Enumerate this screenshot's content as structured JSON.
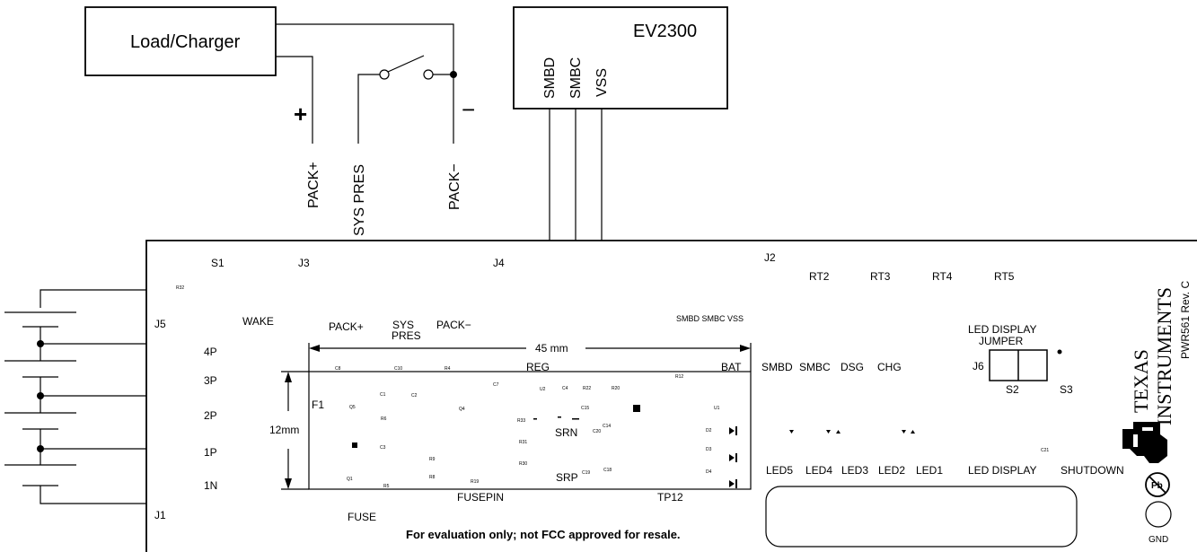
{
  "top": {
    "load_charger": "Load/Charger",
    "plus_sign": "+",
    "minus_sign": "−",
    "pack_plus": "PACK+",
    "sys_pres": "SYS PRES",
    "pack_minus": "PACK−",
    "ev2300": "EV2300",
    "smbd": "SMBD",
    "smbc": "SMBC",
    "vss": "VSS"
  },
  "board": {
    "s1": "S1",
    "j3": "J3",
    "j4": "J4",
    "j2": "J2",
    "j5": "J5",
    "j1": "J1",
    "j6": "J6",
    "r32": "R32",
    "wake": "WAKE",
    "pack_plus": "PACK+",
    "sys": "SYS",
    "pres": "PRES",
    "pack_minus": "PACK−",
    "smbd_smbc_vss": "SMBD SMBC  VSS",
    "dim_45": "45 mm",
    "dim_12": "12mm",
    "reg": "REG",
    "bat": "BAT",
    "fusepin": "FUSEPIN",
    "tp12": "TP12",
    "fuse": "FUSE",
    "f1": "F1",
    "srn": "SRN",
    "srp": "SRP",
    "cell_taps": [
      "4P",
      "3P",
      "2P",
      "1P",
      "1N"
    ],
    "rt": [
      "RT2",
      "RT3",
      "RT4",
      "RT5"
    ],
    "signals": [
      "SMBD",
      "SMBC",
      "DSG",
      "CHG"
    ],
    "leds": [
      "LED5",
      "LED4",
      "LED3",
      "LED2",
      "LED1"
    ],
    "led_display": "LED DISPLAY",
    "led_display_jumper_1": "LED DISPLAY",
    "led_display_jumper_2": "JUMPER",
    "shutdown": "SHUTDOWN",
    "s2": "S2",
    "s3": "S3",
    "c21": "C21",
    "gnd": "GND",
    "disclaimer": "For evaluation only; not FCC approved for resale.",
    "ti_1": "TEXAS",
    "ti_2": "INSTRUMENTS",
    "pwr": "PWR561 Rev. C",
    "pb_mark": "Pb",
    "components": {
      "c8": "C8",
      "c10": "C10",
      "r4": "R4",
      "c7": "C7",
      "u2": "U2",
      "c4": "C4",
      "r22": "R22",
      "r20": "R20",
      "r12": "R12",
      "c1": "C1",
      "c2": "C2",
      "q5": "Q5",
      "q4": "Q4",
      "r6": "R6",
      "c15": "C15",
      "u1": "U1",
      "r33": "R33",
      "c14": "C14",
      "c20": "C20",
      "d2": "D2",
      "c3": "C3",
      "r31": "R31",
      "d3": "D3",
      "r9": "R9",
      "r30": "R30",
      "c19": "C19",
      "c18": "C18",
      "d4": "D4",
      "q1": "Q1",
      "r8": "R8",
      "r19": "R19",
      "r5": "R5"
    }
  }
}
